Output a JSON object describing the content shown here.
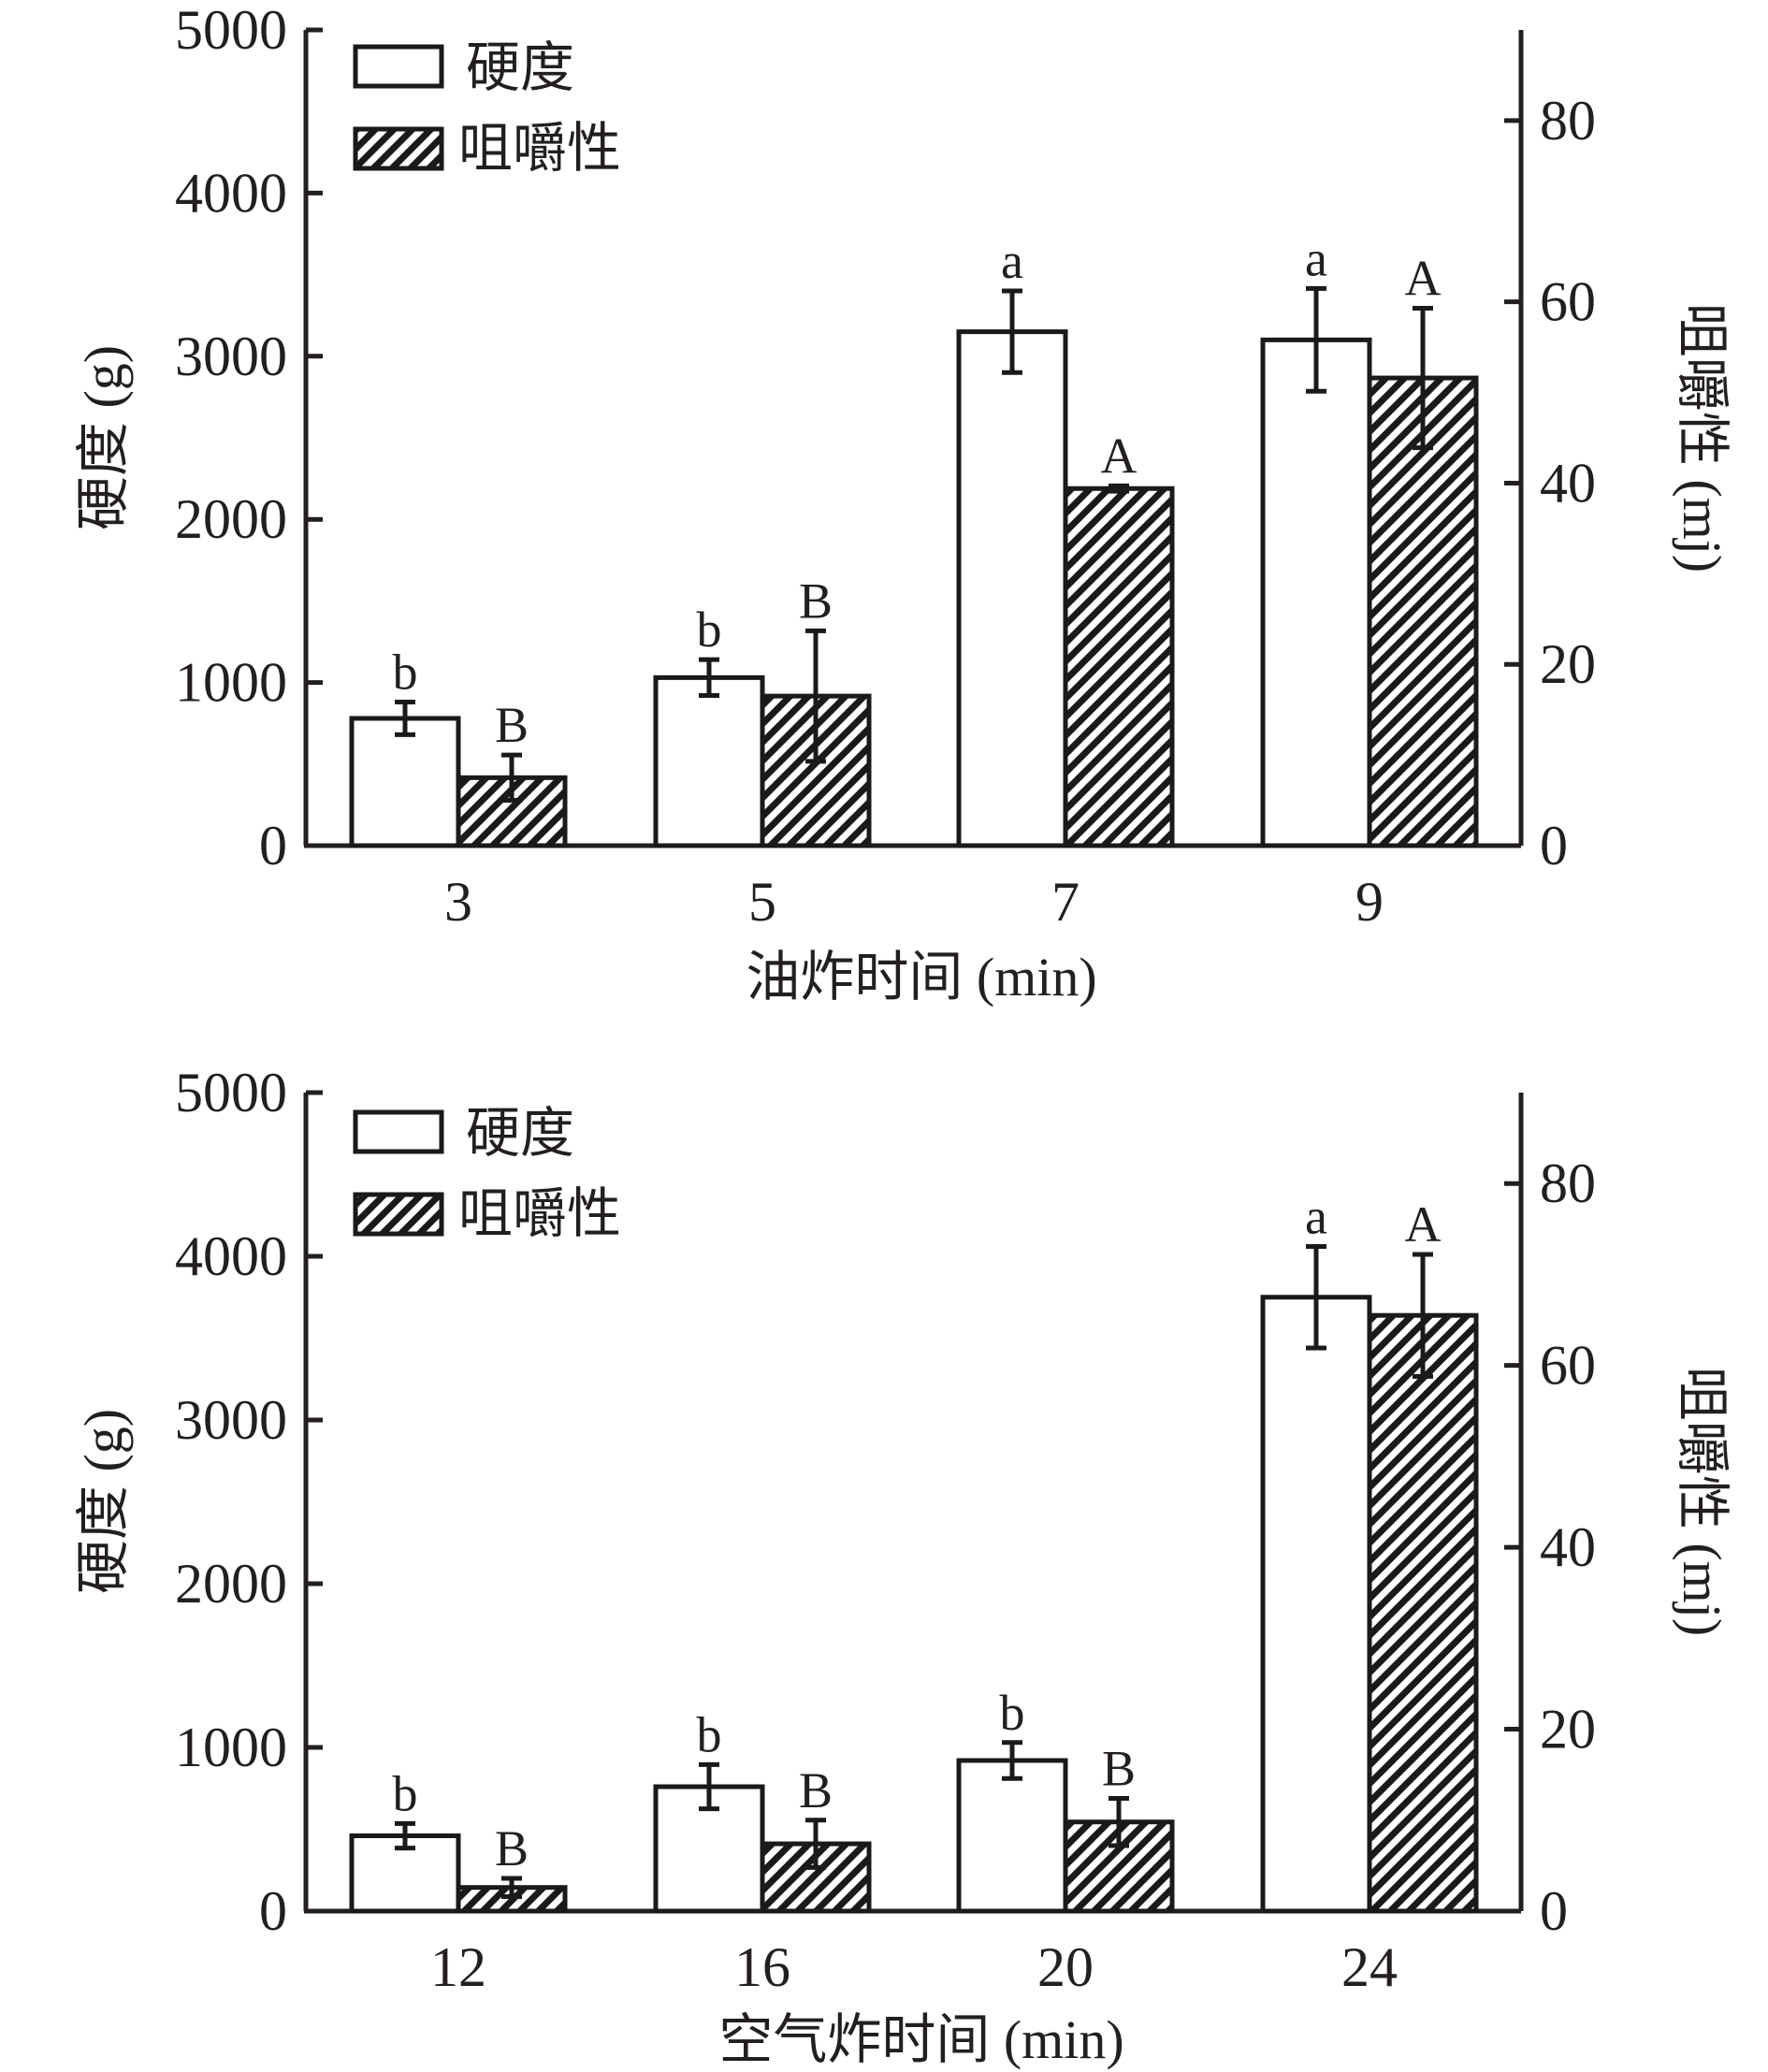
{
  "colors": {
    "ink": "#231f20",
    "bar_fill": "#ffffff",
    "hatch": "#1a1a1a"
  },
  "chart_data": [
    {
      "type": "bar",
      "title": "",
      "xlabel": "油炸时间 (min)",
      "ylabel": "硬度 (g)",
      "ylabel_right": "咀嚼性 (mj)",
      "categories": [
        "3",
        "5",
        "7",
        "9"
      ],
      "ylim": [
        0,
        5000
      ],
      "ylim_right": [
        0,
        90
      ],
      "yticks": [
        0,
        1000,
        2000,
        3000,
        4000,
        5000
      ],
      "yticks_right": [
        0,
        20,
        40,
        60,
        80
      ],
      "legend": [
        "硬度",
        "咀嚼性"
      ],
      "legend_position": "top-left",
      "grid": false,
      "series": [
        {
          "name": "硬度",
          "axis": "left",
          "pattern": "open",
          "values": [
            780,
            1030,
            3150,
            3100
          ],
          "errors": [
            100,
            110,
            250,
            315
          ],
          "labels": [
            "b",
            "b",
            "a",
            "a"
          ]
        },
        {
          "name": "咀嚼性",
          "axis": "right",
          "pattern": "hatched",
          "values": [
            7.5,
            16.5,
            39.4,
            51.6
          ],
          "errors": [
            2.5,
            7.2,
            0.3,
            7.7
          ],
          "labels": [
            "B",
            "B",
            "A",
            "A"
          ]
        }
      ]
    },
    {
      "type": "bar",
      "title": "",
      "xlabel": "空气炸时间 (min)",
      "ylabel": "硬度 (g)",
      "ylabel_right": "咀嚼性 (mj)",
      "categories": [
        "12",
        "16",
        "20",
        "24"
      ],
      "ylim": [
        0,
        5000
      ],
      "ylim_right": [
        0,
        90
      ],
      "yticks": [
        0,
        1000,
        2000,
        3000,
        4000,
        5000
      ],
      "yticks_right": [
        0,
        20,
        40,
        60,
        80
      ],
      "legend": [
        "硬度",
        "咀嚼性"
      ],
      "legend_position": "top-left",
      "grid": false,
      "series": [
        {
          "name": "硬度",
          "axis": "left",
          "pattern": "open",
          "values": [
            460,
            760,
            920,
            3750
          ],
          "errors": [
            75,
            135,
            110,
            310
          ],
          "labels": [
            "b",
            "b",
            "b",
            "a"
          ]
        },
        {
          "name": "咀嚼性",
          "axis": "right",
          "pattern": "hatched",
          "values": [
            2.6,
            7.4,
            9.8,
            65.5
          ],
          "errors": [
            1.0,
            2.6,
            2.6,
            6.7
          ],
          "labels": [
            "B",
            "B",
            "B",
            "A"
          ]
        }
      ]
    }
  ]
}
